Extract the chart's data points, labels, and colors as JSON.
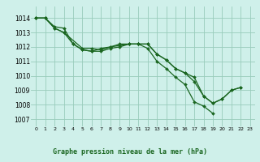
{
  "background_color": "#cff0ea",
  "grid_color": "#99ccbb",
  "line_color": "#1a6620",
  "marker_color": "#1a6620",
  "title": "Graphe pression niveau de la mer (hPa)",
  "xlim": [
    -0.5,
    23.5
  ],
  "ylim": [
    1006.5,
    1014.8
  ],
  "yticks": [
    1007,
    1008,
    1009,
    1010,
    1011,
    1012,
    1013,
    1014
  ],
  "xticks": [
    0,
    1,
    2,
    3,
    4,
    5,
    6,
    7,
    8,
    9,
    10,
    11,
    12,
    13,
    14,
    15,
    16,
    17,
    18,
    19,
    20,
    21,
    22,
    23
  ],
  "line1_x": [
    0,
    1,
    2,
    3,
    4,
    5,
    6,
    7,
    8,
    9,
    10,
    11,
    12,
    13,
    14,
    15,
    16,
    17,
    18,
    19,
    20,
    21,
    22
  ],
  "line1_y": [
    1014.0,
    1014.0,
    1013.4,
    1013.3,
    1012.2,
    1011.8,
    1011.7,
    1011.9,
    1012.0,
    1012.2,
    1012.2,
    1012.2,
    1012.2,
    1011.5,
    1011.1,
    1010.5,
    1010.2,
    1009.6,
    1008.6,
    1008.1,
    1008.4,
    1009.0,
    1009.2
  ],
  "line2_x": [
    0,
    1,
    2,
    3,
    5,
    6,
    7,
    8,
    9,
    10,
    11,
    12,
    13,
    14,
    15,
    16,
    17,
    18,
    19,
    20,
    21,
    22
  ],
  "line2_y": [
    1014.0,
    1014.0,
    1013.3,
    1013.0,
    1011.9,
    1011.9,
    1011.8,
    1012.0,
    1012.1,
    1012.2,
    1012.2,
    1012.2,
    1011.5,
    1011.1,
    1010.5,
    1010.2,
    1009.9,
    1008.6,
    1008.1,
    1008.4,
    1009.0,
    1009.2
  ],
  "line3_x": [
    0,
    1,
    2,
    3,
    4,
    5,
    6,
    7,
    8,
    9,
    10,
    11,
    12,
    13,
    14,
    15,
    16,
    17,
    18,
    19
  ],
  "line3_y": [
    1014.0,
    1014.0,
    1013.3,
    1013.0,
    1012.2,
    1011.8,
    1011.7,
    1011.7,
    1011.9,
    1012.0,
    1012.2,
    1012.2,
    1011.9,
    1011.0,
    1010.5,
    1009.9,
    1009.4,
    1008.2,
    1007.9,
    1007.4
  ],
  "figsize": [
    3.2,
    2.0
  ],
  "dpi": 100
}
